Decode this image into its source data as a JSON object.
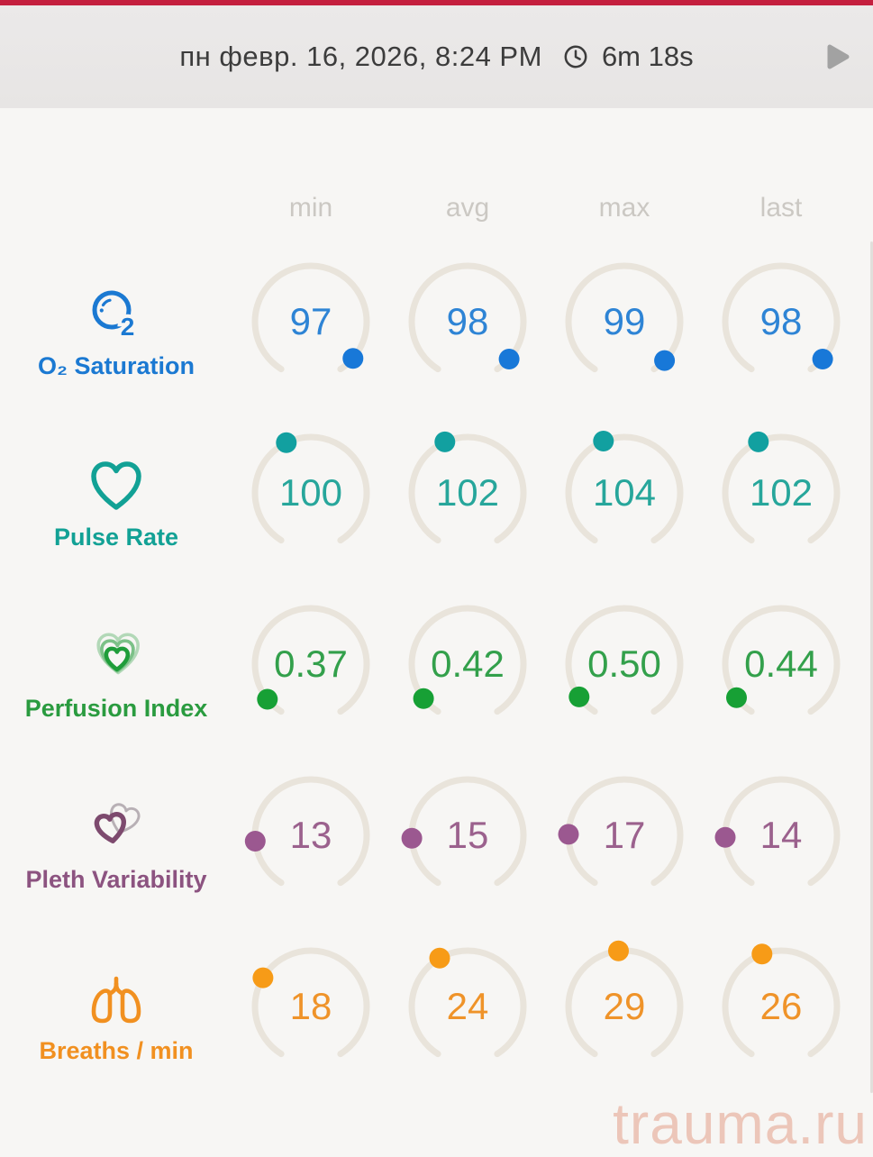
{
  "header": {
    "date": "пн февр. 16, 2026, 8:24 PM",
    "duration": "6m 18s"
  },
  "columns": [
    "min",
    "avg",
    "max",
    "last"
  ],
  "watermark": "trauma.ru",
  "colors": {
    "top_bar": "#c41f3e",
    "header_bg": "#e9e7e6",
    "header_text": "#3c3c3c",
    "body_bg": "#f7f6f4",
    "column_header": "#cbc8c3",
    "arc_track": "#e9e4db",
    "play_icon": "#a2a2a2",
    "watermark": "#ecc6b9"
  },
  "rows": [
    {
      "id": "o2-saturation",
      "label": "O₂ Saturation",
      "icon": "o2-bubble-icon",
      "color": "#1b79d2",
      "value_color": "#2e84d5",
      "dot_color": "#1878d8",
      "values": [
        "97",
        "98",
        "99",
        "98"
      ],
      "dot_angles": [
        131,
        132,
        134,
        132
      ]
    },
    {
      "id": "pulse-rate",
      "label": "Pulse Rate",
      "icon": "heart-outline-icon",
      "color": "#12a195",
      "value_color": "#27a69b",
      "dot_color": "#12a0a0",
      "values": [
        "100",
        "102",
        "104",
        "102"
      ],
      "dot_angles": [
        -26,
        -24,
        -22,
        -24
      ]
    },
    {
      "id": "perfusion-index",
      "label": "Perfusion Index",
      "icon": "nested-hearts-icon",
      "color": "#2a9b3f",
      "value_color": "#33a04b",
      "dot_color": "#17a035",
      "values": [
        "0.37",
        "0.42",
        "0.50",
        "0.44"
      ],
      "dot_angles": [
        -129,
        -128,
        -126,
        -127
      ]
    },
    {
      "id": "pleth-variability",
      "label": "Pleth Variability",
      "icon": "overlapping-hearts-icon",
      "color": "#8c5380",
      "value_color": "#9b618d",
      "dot_color": "#9b5890",
      "values": [
        "13",
        "15",
        "17",
        "14"
      ],
      "dot_angles": [
        -96,
        -93,
        -89,
        -92
      ]
    },
    {
      "id": "breaths-per-min",
      "label": "Breaths / min",
      "icon": "lungs-icon",
      "color": "#f19020",
      "value_color": "#ef9329",
      "dot_color": "#f79b17",
      "values": [
        "18",
        "24",
        "29",
        "26"
      ],
      "dot_angles": [
        -59,
        -30,
        -6,
        -20
      ]
    }
  ]
}
